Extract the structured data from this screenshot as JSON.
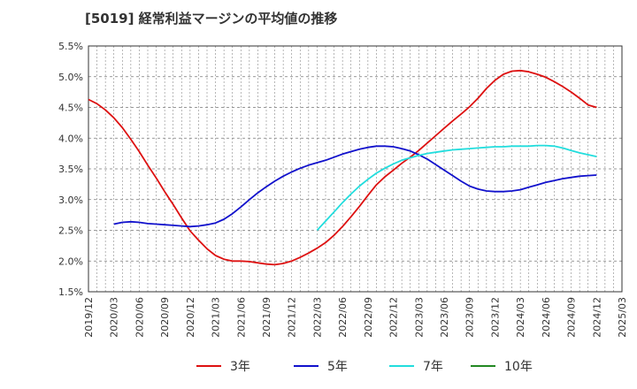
{
  "chart_data": {
    "type": "line",
    "title": "[5019]  経常利益マージンの平均値の推移",
    "xlabel": "",
    "ylabel": "",
    "ylim": [
      1.5,
      5.5
    ],
    "grid": true,
    "legend_position": "bottom",
    "y_ticks": [
      "1.5%",
      "2.0%",
      "2.5%",
      "3.0%",
      "3.5%",
      "4.0%",
      "4.5%",
      "5.0%",
      "5.5%"
    ],
    "x_ticks": [
      "2019/12",
      "2020/03",
      "2020/06",
      "2020/09",
      "2020/12",
      "2021/03",
      "2021/06",
      "2021/09",
      "2021/12",
      "2022/03",
      "2022/06",
      "2022/09",
      "2022/12",
      "2023/03",
      "2023/06",
      "2023/09",
      "2023/12",
      "2024/03",
      "2024/06",
      "2024/09",
      "2024/12",
      "2025/03"
    ],
    "series": [
      {
        "name": "3年",
        "color": "#dd1111",
        "x": [
          "2019/12",
          "2020/01",
          "2020/02",
          "2020/03",
          "2020/04",
          "2020/05",
          "2020/06",
          "2020/07",
          "2020/08",
          "2020/09",
          "2020/10",
          "2020/11",
          "2020/12",
          "2021/01",
          "2021/02",
          "2021/03",
          "2021/04",
          "2021/05",
          "2021/06",
          "2021/07",
          "2021/08",
          "2021/09",
          "2021/10",
          "2021/11",
          "2021/12",
          "2022/01",
          "2022/02",
          "2022/03",
          "2022/04",
          "2022/05",
          "2022/06",
          "2022/07",
          "2022/08",
          "2022/09",
          "2022/10",
          "2022/11",
          "2022/12",
          "2023/01",
          "2023/02",
          "2023/03",
          "2023/04",
          "2023/05",
          "2023/06",
          "2023/07",
          "2023/08",
          "2023/09",
          "2023/10",
          "2023/11",
          "2023/12",
          "2024/01",
          "2024/02",
          "2024/03",
          "2024/04",
          "2024/05",
          "2024/06",
          "2024/07",
          "2024/08",
          "2024/09",
          "2024/10",
          "2024/11",
          "2024/12"
        ],
        "values": [
          4.63,
          4.56,
          4.46,
          4.33,
          4.17,
          3.98,
          3.78,
          3.56,
          3.35,
          3.13,
          2.92,
          2.7,
          2.49,
          2.34,
          2.2,
          2.09,
          2.03,
          2.0,
          2.0,
          1.99,
          1.97,
          1.95,
          1.94,
          1.96,
          2.0,
          2.06,
          2.13,
          2.21,
          2.3,
          2.42,
          2.56,
          2.72,
          2.89,
          3.07,
          3.24,
          3.37,
          3.48,
          3.59,
          3.69,
          3.8,
          3.92,
          4.04,
          4.16,
          4.28,
          4.39,
          4.51,
          4.65,
          4.81,
          4.94,
          5.04,
          5.09,
          5.1,
          5.08,
          5.04,
          4.99,
          4.92,
          4.84,
          4.75,
          4.65,
          4.54,
          4.5
        ]
      },
      {
        "name": "5年",
        "color": "#1111cc",
        "x": [
          "2020/03",
          "2020/04",
          "2020/05",
          "2020/06",
          "2020/07",
          "2020/08",
          "2020/09",
          "2020/10",
          "2020/11",
          "2020/12",
          "2021/01",
          "2021/02",
          "2021/03",
          "2021/04",
          "2021/05",
          "2021/06",
          "2021/07",
          "2021/08",
          "2021/09",
          "2021/10",
          "2021/11",
          "2021/12",
          "2022/01",
          "2022/02",
          "2022/03",
          "2022/04",
          "2022/05",
          "2022/06",
          "2022/07",
          "2022/08",
          "2022/09",
          "2022/10",
          "2022/11",
          "2022/12",
          "2023/01",
          "2023/02",
          "2023/03",
          "2023/04",
          "2023/05",
          "2023/06",
          "2023/07",
          "2023/08",
          "2023/09",
          "2023/10",
          "2023/11",
          "2023/12",
          "2024/01",
          "2024/02",
          "2024/03",
          "2024/04",
          "2024/05",
          "2024/06",
          "2024/07",
          "2024/08",
          "2024/09",
          "2024/10",
          "2024/11",
          "2024/12"
        ],
        "values": [
          2.6,
          2.63,
          2.64,
          2.63,
          2.61,
          2.6,
          2.59,
          2.58,
          2.57,
          2.56,
          2.57,
          2.59,
          2.62,
          2.68,
          2.77,
          2.88,
          3.0,
          3.11,
          3.21,
          3.3,
          3.38,
          3.45,
          3.51,
          3.56,
          3.6,
          3.64,
          3.69,
          3.74,
          3.78,
          3.82,
          3.85,
          3.87,
          3.87,
          3.86,
          3.83,
          3.79,
          3.73,
          3.66,
          3.57,
          3.48,
          3.39,
          3.3,
          3.22,
          3.17,
          3.14,
          3.13,
          3.13,
          3.14,
          3.16,
          3.2,
          3.24,
          3.28,
          3.31,
          3.34,
          3.36,
          3.38,
          3.39,
          3.4
        ]
      },
      {
        "name": "7年",
        "color": "#22dddd",
        "x": [
          "2022/03",
          "2022/04",
          "2022/05",
          "2022/06",
          "2022/07",
          "2022/08",
          "2022/09",
          "2022/10",
          "2022/11",
          "2022/12",
          "2023/01",
          "2023/02",
          "2023/03",
          "2023/04",
          "2023/05",
          "2023/06",
          "2023/07",
          "2023/08",
          "2023/09",
          "2023/10",
          "2023/11",
          "2023/12",
          "2024/01",
          "2024/02",
          "2024/03",
          "2024/04",
          "2024/05",
          "2024/06",
          "2024/07",
          "2024/08",
          "2024/09",
          "2024/10",
          "2024/11",
          "2024/12"
        ],
        "values": [
          2.5,
          2.65,
          2.8,
          2.95,
          3.09,
          3.22,
          3.33,
          3.43,
          3.51,
          3.58,
          3.64,
          3.68,
          3.72,
          3.75,
          3.77,
          3.79,
          3.81,
          3.82,
          3.83,
          3.84,
          3.85,
          3.86,
          3.86,
          3.87,
          3.87,
          3.87,
          3.88,
          3.88,
          3.87,
          3.84,
          3.8,
          3.76,
          3.73,
          3.7
        ]
      },
      {
        "name": "10年",
        "color": "#228822",
        "x": [],
        "values": []
      }
    ]
  }
}
